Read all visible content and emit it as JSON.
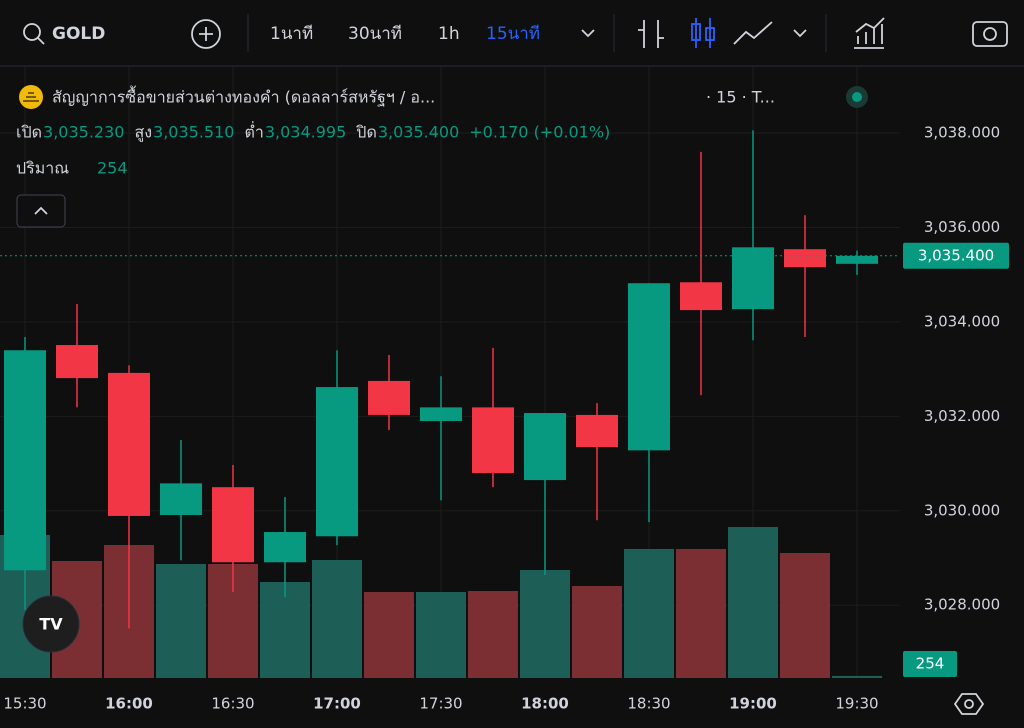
{
  "toolbar": {
    "symbol": "GOLD",
    "intervals": [
      "1นาที",
      "30นาที",
      "1h",
      "15นาที"
    ]
  },
  "legend": {
    "title": "สัญญาการซื้อขายส่วนต่างทองคำ (ดอลลาร์สหรัฐฯ / อ...",
    "suffix": "· 15 · T...",
    "ohlc": [
      {
        "label": "เปิด",
        "value": "3,035.230"
      },
      {
        "label": "สูง",
        "value": "3,035.510"
      },
      {
        "label": "ต่ำ",
        "value": "3,034.995"
      },
      {
        "label": "ปิด",
        "value": "3,035.400"
      }
    ],
    "change": "+0.170 (+0.01%)",
    "volume_label": "ปริมาณ",
    "volume_value": "254"
  },
  "chart_data": {
    "type": "candlestick",
    "categories": [
      "15:30",
      null,
      "16:00",
      null,
      "16:30",
      null,
      "17:00",
      null,
      "17:30",
      null,
      "18:00",
      null,
      "18:30",
      null,
      "19:00",
      null,
      "19:30"
    ],
    "open": [
      3028.74,
      3033.51,
      3032.92,
      3029.91,
      3030.5,
      3028.91,
      3029.46,
      3032.75,
      3031.9,
      3032.19,
      3030.65,
      3032.03,
      3031.28,
      3034.84,
      3034.27,
      3035.54,
      3035.23
    ],
    "high": [
      3033.68,
      3034.38,
      3033.08,
      3031.5,
      3030.97,
      3030.29,
      3033.4,
      3033.3,
      3032.85,
      3033.45,
      3032.07,
      3032.28,
      3034.82,
      3037.6,
      3038.06,
      3036.26,
      3035.51
    ],
    "low": [
      3027.9,
      3032.19,
      3027.51,
      3028.95,
      3028.28,
      3028.17,
      3029.27,
      3031.71,
      3030.22,
      3030.5,
      3028.64,
      3029.8,
      3029.76,
      3032.45,
      3033.61,
      3033.68,
      3034.995
    ],
    "close": [
      3033.4,
      3032.81,
      3029.89,
      3030.58,
      3028.91,
      3029.55,
      3032.62,
      3032.03,
      3032.19,
      3030.8,
      3032.07,
      3031.35,
      3034.82,
      3034.25,
      3035.58,
      3035.16,
      3035.4
    ],
    "volume": [
      17160,
      14040,
      15960,
      13680,
      13680,
      11520,
      14160,
      10320,
      10320,
      10440,
      12960,
      11040,
      15480,
      15480,
      18120,
      15000,
      254
    ],
    "ylim": [
      3026.31,
      3039.42
    ],
    "yticks": [
      {
        "value": 3028,
        "label": "3,028.000"
      },
      {
        "value": 3030,
        "label": "3,030.000"
      },
      {
        "value": 3032,
        "label": "3,032.000"
      },
      {
        "value": 3034,
        "label": "3,034.000"
      },
      {
        "value": 3036,
        "label": "3,036.000"
      },
      {
        "value": 3038,
        "label": "3,038.000"
      }
    ],
    "up_color": "#089981",
    "down_color": "#f23645",
    "grid": true
  }
}
